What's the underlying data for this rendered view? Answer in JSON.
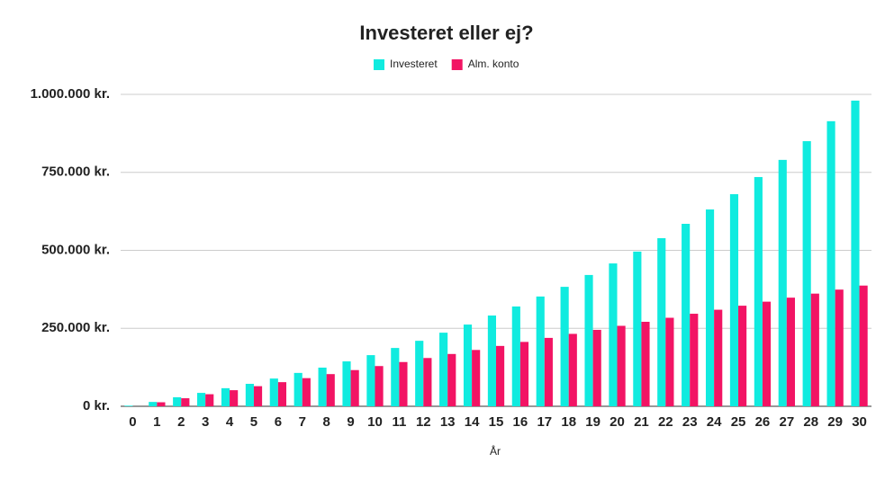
{
  "chart_data": {
    "type": "bar",
    "title": "Investeret eller ej?",
    "x_label": "År",
    "categories": [
      "0",
      "1",
      "2",
      "3",
      "4",
      "5",
      "6",
      "7",
      "8",
      "9",
      "10",
      "11",
      "12",
      "13",
      "14",
      "15",
      "16",
      "17",
      "18",
      "19",
      "20",
      "21",
      "22",
      "23",
      "24",
      "25",
      "26",
      "27",
      "28",
      "29",
      "30"
    ],
    "series": [
      {
        "name": "Investeret",
        "color": "#10ebdf",
        "values": [
          2000,
          14000,
          29000,
          43000,
          58000,
          72000,
          89000,
          107000,
          124000,
          144000,
          164000,
          187000,
          210000,
          236000,
          262000,
          291000,
          320000,
          352000,
          383000,
          421000,
          458000,
          496000,
          539000,
          585000,
          631000,
          680000,
          735000,
          790000,
          850000,
          914000,
          980000
        ]
      },
      {
        "name": "Alm. konto",
        "color": "#f21464",
        "values": [
          0,
          12900,
          25800,
          38700,
          51600,
          64500,
          77400,
          90300,
          103200,
          116100,
          129000,
          141900,
          154800,
          167700,
          180600,
          193500,
          206400,
          219300,
          232200,
          245100,
          258000,
          270900,
          283800,
          296700,
          309600,
          322500,
          335400,
          348300,
          361200,
          374100,
          387000
        ]
      }
    ],
    "ylim": [
      0,
      1000000
    ],
    "yticks": [
      {
        "value": 0,
        "label": "0 kr."
      },
      {
        "value": 250000,
        "label": "250.000 kr."
      },
      {
        "value": 500000,
        "label": "500.000 kr."
      },
      {
        "value": 750000,
        "label": "750.000 kr."
      },
      {
        "value": 1000000,
        "label": "1.000.000 kr."
      }
    ],
    "grid": true,
    "legend": "top"
  }
}
